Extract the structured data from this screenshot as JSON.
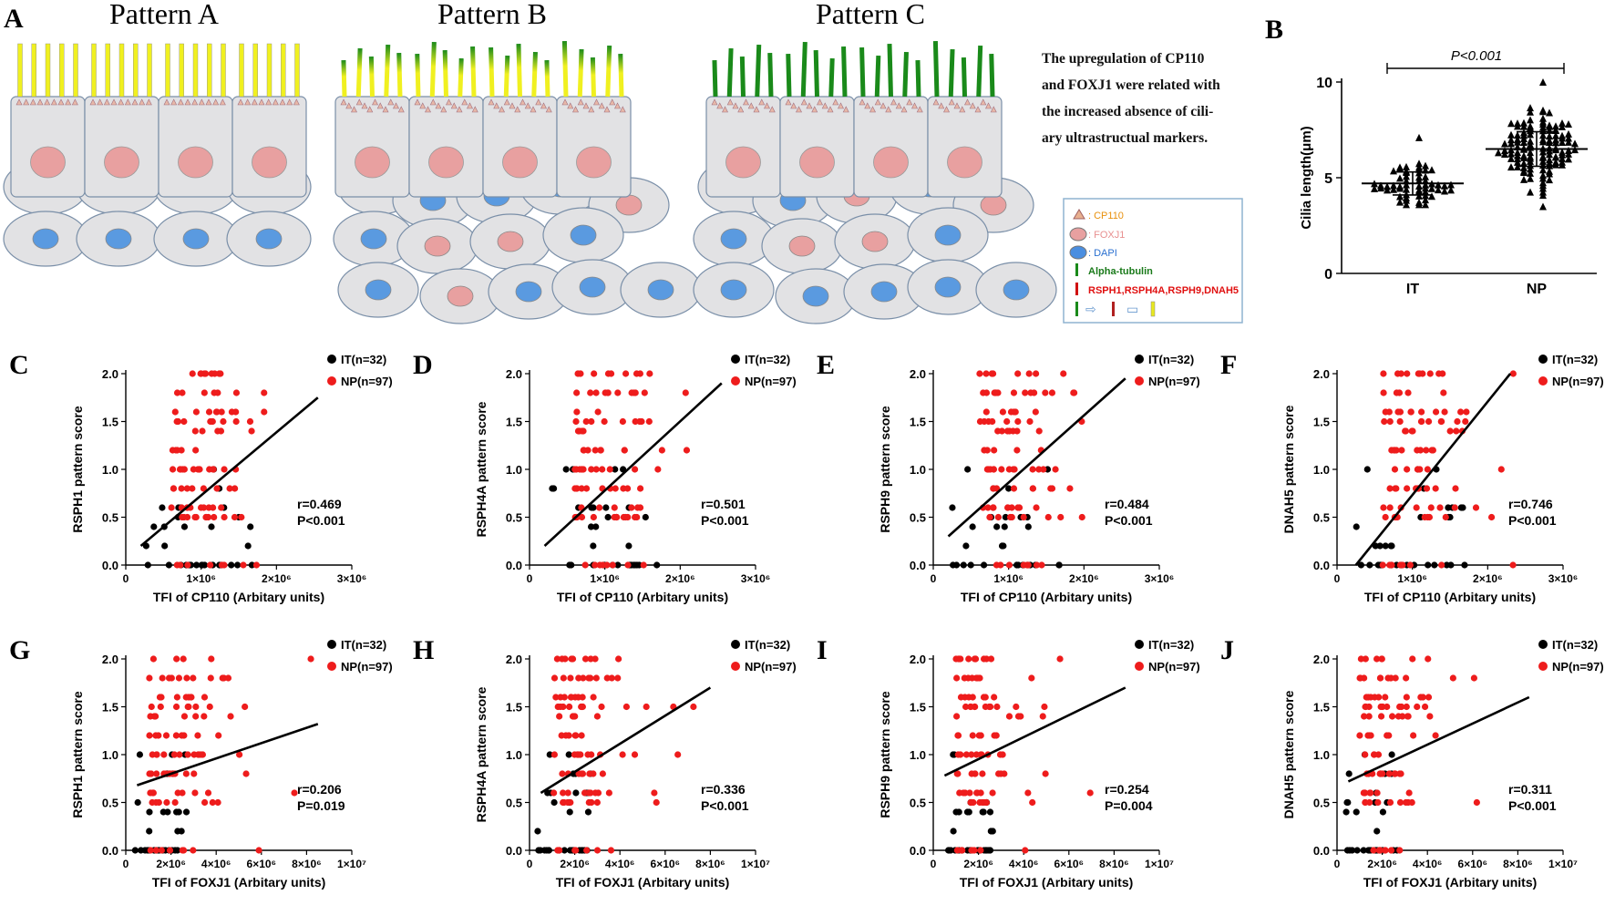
{
  "panel_a": {
    "letter": "A",
    "patterns": [
      "Pattern A",
      "Pattern B",
      "Pattern C"
    ],
    "caption_lines": [
      "The upregulation of CP110",
      "and FOXJ1 were related with",
      "the increased absence of cili-",
      "ary ultrastructual markers."
    ],
    "legend": {
      "cp110": ": CP110",
      "foxj1": ": FOXJ1",
      "dapi": ": DAPI",
      "tubulin": "Alpha-tubulin",
      "markers": "RSPH1,RSPH4A,RSPH9,DNAH5"
    },
    "colors": {
      "cp110": "#e8a060",
      "foxj1": "#e8a0a0",
      "dapi": "#5a9ae0",
      "tubulin": "#1a8a1a",
      "markers": "#e01010",
      "cilia_yellow": "#f0f020",
      "cell_fill": "#e2e2e4",
      "cell_stroke": "#7a8fa8"
    }
  },
  "panel_b": {
    "letter": "B",
    "chart_data": {
      "type": "scatter",
      "title": "",
      "ylabel": "Cilia length(μm)",
      "ylim": [
        0,
        10
      ],
      "yticks": [
        "0",
        "5",
        "10"
      ],
      "categories": [
        "IT",
        "NP"
      ],
      "significance": "P<0.001",
      "series": [
        {
          "name": "IT",
          "mean": 4.7,
          "sd": 0.6,
          "min": 3.6,
          "max": 7.1,
          "n": 60
        },
        {
          "name": "NP",
          "mean": 6.5,
          "sd": 0.9,
          "min": 3.5,
          "max": 10.0,
          "n": 130
        }
      ]
    }
  },
  "scatter_panels": {
    "legend": {
      "it": "IT(n=32)",
      "np": "NP(n=97)"
    },
    "colors": {
      "it": "#000000",
      "np": "#ee1c1c",
      "line": "#000000"
    },
    "chart_data": [
      {
        "letter": "C",
        "type": "scatter",
        "ylabel": "RSPH1 pattern score",
        "xlabel": "TFI of CP110 (Arbitary units)",
        "xmax": 3000000,
        "xticks": [
          "0",
          "1×10⁶",
          "2×10⁶",
          "3×10⁶"
        ],
        "ylim": [
          0,
          2
        ],
        "yticks": [
          "0.0",
          "0.5",
          "1.0",
          "1.5",
          "2.0"
        ],
        "r": "r=0.469",
        "p": "P<0.001",
        "line": [
          [
            200000,
            0.2
          ],
          [
            2550000,
            1.75
          ]
        ]
      },
      {
        "letter": "D",
        "type": "scatter",
        "ylabel": "RSPH4A pattern score",
        "xlabel": "TFI of CP110 (Arbitary units)",
        "xmax": 3000000,
        "xticks": [
          "0",
          "1×10⁶",
          "2×10⁶",
          "3×10⁶"
        ],
        "ylim": [
          0,
          2
        ],
        "yticks": [
          "0.0",
          "0.5",
          "1.0",
          "1.5",
          "2.0"
        ],
        "r": "r=0.501",
        "p": "P<0.001",
        "line": [
          [
            200000,
            0.2
          ],
          [
            2550000,
            1.9
          ]
        ]
      },
      {
        "letter": "E",
        "type": "scatter",
        "ylabel": "RSPH9 pattern score",
        "xlabel": "TFI of CP110 (Arbitary units)",
        "xmax": 3000000,
        "xticks": [
          "0",
          "1×10⁶",
          "2×10⁶",
          "3×10⁶"
        ],
        "ylim": [
          0,
          2
        ],
        "yticks": [
          "0.0",
          "0.5",
          "1.0",
          "1.5",
          "2.0"
        ],
        "r": "r=0.484",
        "p": "P<0.001",
        "line": [
          [
            200000,
            0.3
          ],
          [
            2550000,
            1.95
          ]
        ]
      },
      {
        "letter": "F",
        "type": "scatter",
        "ylabel": "DNAH5 pattern score",
        "xlabel": "TFI of CP110 (Arbitary units)",
        "xmax": 3000000,
        "xticks": [
          "0",
          "1×10⁶",
          "2×10⁶",
          "3×10⁶"
        ],
        "ylim": [
          0,
          2
        ],
        "yticks": [
          "0.0",
          "0.5",
          "1.0",
          "1.5",
          "2.0"
        ],
        "r": "r=0.746",
        "p": "P<0.001",
        "line": [
          [
            250000,
            0.0
          ],
          [
            2300000,
            2.0
          ]
        ]
      },
      {
        "letter": "G",
        "type": "scatter",
        "ylabel": "RSPH1 pattern score",
        "xlabel": "TFI of FOXJ1 (Arbitary units)",
        "xmax": 10000000,
        "xticks": [
          "0",
          "2×10⁶",
          "4×10⁶",
          "6×10⁶",
          "8×10⁶",
          "1×10⁷"
        ],
        "ylim": [
          0,
          2
        ],
        "yticks": [
          "0.0",
          "0.5",
          "1.0",
          "1.5",
          "2.0"
        ],
        "r": "r=0.206",
        "p": "P=0.019",
        "line": [
          [
            500000,
            0.68
          ],
          [
            8500000,
            1.32
          ]
        ]
      },
      {
        "letter": "H",
        "type": "scatter",
        "ylabel": "RSPH4A pattern score",
        "xlabel": "TFI of FOXJ1 (Arbitary units)",
        "xmax": 10000000,
        "xticks": [
          "0",
          "2×10⁶",
          "4×10⁶",
          "6×10⁶",
          "8×10⁶",
          "1×10⁷"
        ],
        "ylim": [
          0,
          2
        ],
        "yticks": [
          "0.0",
          "0.5",
          "1.0",
          "1.5",
          "2.0"
        ],
        "r": "r=0.336",
        "p": "P<0.001",
        "line": [
          [
            500000,
            0.6
          ],
          [
            8000000,
            1.7
          ]
        ]
      },
      {
        "letter": "I",
        "type": "scatter",
        "ylabel": "RSPH9 pattern score",
        "xlabel": "TFI of FOXJ1 (Arbitary units)",
        "xmax": 10000000,
        "xticks": [
          "0",
          "2×10⁶",
          "4×10⁶",
          "6×10⁶",
          "8×10⁶",
          "1×10⁷"
        ],
        "ylim": [
          0,
          2
        ],
        "yticks": [
          "0.0",
          "0.5",
          "1.0",
          "1.5",
          "2.0"
        ],
        "r": "r=0.254",
        "p": "P=0.004",
        "line": [
          [
            500000,
            0.78
          ],
          [
            8500000,
            1.7
          ]
        ]
      },
      {
        "letter": "J",
        "type": "scatter",
        "ylabel": "DNAH5 pattern score",
        "xlabel": "TFI of FOXJ1 (Arbitary units)",
        "xmax": 10000000,
        "xticks": [
          "0",
          "2×10⁶",
          "4×10⁶",
          "6×10⁶",
          "8×10⁶",
          "1×10⁷"
        ],
        "ylim": [
          0,
          2
        ],
        "yticks": [
          "0.0",
          "0.5",
          "1.0",
          "1.5",
          "2.0"
        ],
        "r": "r=0.311",
        "p": "P<0.001",
        "line": [
          [
            500000,
            0.72
          ],
          [
            8500000,
            1.6
          ]
        ]
      }
    ]
  }
}
